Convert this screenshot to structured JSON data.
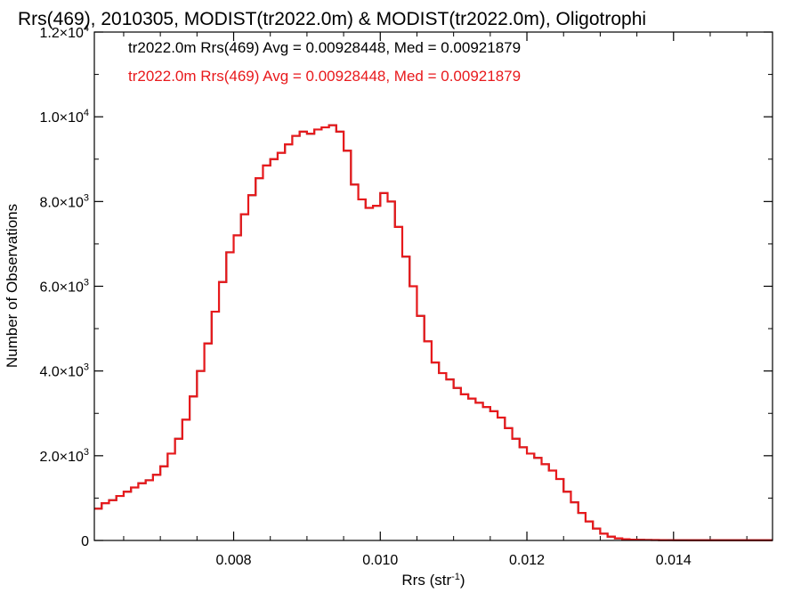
{
  "chart_data": {
    "type": "line",
    "step": true,
    "title": "Rrs(469), 2010305, MODIST(tr2022.0m) & MODIST(tr2022.0m), Oligotrophi",
    "xlabel": "Rrs (str",
    "xlabel_sup": "-1",
    "xlabel_end": ")",
    "ylabel": "Number of Observations",
    "xlim": [
      0.0061,
      0.01535
    ],
    "ylim": [
      0,
      12000
    ],
    "grid": false,
    "x_ticks": [
      {
        "value": 0.008,
        "label": "0.008"
      },
      {
        "value": 0.01,
        "label": "0.010"
      },
      {
        "value": 0.012,
        "label": "0.012"
      },
      {
        "value": 0.014,
        "label": "0.014"
      }
    ],
    "y_ticks": [
      {
        "value": 0,
        "mant": "0",
        "exp": ""
      },
      {
        "value": 2000,
        "mant": "2.0×10",
        "exp": "3"
      },
      {
        "value": 4000,
        "mant": "4.0×10",
        "exp": "3"
      },
      {
        "value": 6000,
        "mant": "6.0×10",
        "exp": "3"
      },
      {
        "value": 8000,
        "mant": "8.0×10",
        "exp": "3"
      },
      {
        "value": 10000,
        "mant": "1.0×10",
        "exp": "4"
      },
      {
        "value": 12000,
        "mant": "1.2×10",
        "exp": "4"
      }
    ],
    "annotations": [
      {
        "text": "tr2022.0m Rrs(469) Avg = 0.00928448, Med = 0.00921879",
        "color": "#000000"
      },
      {
        "text": "tr2022.0m Rrs(469) Avg = 0.00928448, Med = 0.00921879",
        "color": "#e8191c"
      }
    ],
    "series": [
      {
        "color": "#000000",
        "x": [
          0.0061,
          0.0062,
          0.0063,
          0.0064,
          0.0065,
          0.0066,
          0.0067,
          0.0068,
          0.0069,
          0.007,
          0.0071,
          0.0072,
          0.0073,
          0.0074,
          0.0075,
          0.0076,
          0.0077,
          0.0078,
          0.0079,
          0.008,
          0.0081,
          0.0082,
          0.0083,
          0.0084,
          0.0085,
          0.0086,
          0.0087,
          0.0088,
          0.0089,
          0.009,
          0.0091,
          0.0092,
          0.0093,
          0.0094,
          0.0095,
          0.0096,
          0.0097,
          0.0098,
          0.0099,
          0.01,
          0.0101,
          0.0102,
          0.0103,
          0.0104,
          0.0105,
          0.0106,
          0.0107,
          0.0108,
          0.0109,
          0.011,
          0.0111,
          0.0112,
          0.0113,
          0.0114,
          0.0115,
          0.0116,
          0.0117,
          0.0118,
          0.0119,
          0.012,
          0.0121,
          0.0122,
          0.0123,
          0.0124,
          0.0125,
          0.0126,
          0.0127,
          0.0128,
          0.0129,
          0.013,
          0.0131,
          0.0132,
          0.0133,
          0.0134,
          0.0135,
          0.0136,
          0.0137,
          0.0138,
          0.0139,
          0.014,
          0.0142,
          0.0144,
          0.0146,
          0.0148,
          0.015,
          0.0152,
          0.01535
        ],
        "y": [
          750,
          880,
          950,
          1050,
          1150,
          1250,
          1350,
          1420,
          1550,
          1750,
          2050,
          2400,
          2850,
          3400,
          4000,
          4650,
          5400,
          6100,
          6800,
          7200,
          7700,
          8150,
          8550,
          8850,
          9000,
          9150,
          9350,
          9550,
          9650,
          9600,
          9700,
          9750,
          9800,
          9650,
          9200,
          8400,
          8050,
          7850,
          7900,
          8200,
          8000,
          7400,
          6700,
          6000,
          5300,
          4700,
          4200,
          3950,
          3800,
          3600,
          3450,
          3350,
          3250,
          3150,
          3050,
          2900,
          2650,
          2400,
          2200,
          2050,
          1950,
          1800,
          1650,
          1450,
          1150,
          900,
          650,
          450,
          280,
          160,
          90,
          50,
          30,
          20,
          15,
          12,
          10,
          8,
          7,
          6,
          5,
          5,
          5,
          5,
          5,
          5,
          5
        ]
      },
      {
        "color": "#e8191c",
        "x": [
          0.0061,
          0.0062,
          0.0063,
          0.0064,
          0.0065,
          0.0066,
          0.0067,
          0.0068,
          0.0069,
          0.007,
          0.0071,
          0.0072,
          0.0073,
          0.0074,
          0.0075,
          0.0076,
          0.0077,
          0.0078,
          0.0079,
          0.008,
          0.0081,
          0.0082,
          0.0083,
          0.0084,
          0.0085,
          0.0086,
          0.0087,
          0.0088,
          0.0089,
          0.009,
          0.0091,
          0.0092,
          0.0093,
          0.0094,
          0.0095,
          0.0096,
          0.0097,
          0.0098,
          0.0099,
          0.01,
          0.0101,
          0.0102,
          0.0103,
          0.0104,
          0.0105,
          0.0106,
          0.0107,
          0.0108,
          0.0109,
          0.011,
          0.0111,
          0.0112,
          0.0113,
          0.0114,
          0.0115,
          0.0116,
          0.0117,
          0.0118,
          0.0119,
          0.012,
          0.0121,
          0.0122,
          0.0123,
          0.0124,
          0.0125,
          0.0126,
          0.0127,
          0.0128,
          0.0129,
          0.013,
          0.0131,
          0.0132,
          0.0133,
          0.0134,
          0.0135,
          0.0136,
          0.0137,
          0.0138,
          0.0139,
          0.014,
          0.0142,
          0.0144,
          0.0146,
          0.0148,
          0.015,
          0.0152,
          0.01535
        ],
        "y": [
          750,
          880,
          950,
          1050,
          1150,
          1250,
          1350,
          1420,
          1550,
          1750,
          2050,
          2400,
          2850,
          3400,
          4000,
          4650,
          5400,
          6100,
          6800,
          7200,
          7700,
          8150,
          8550,
          8850,
          9000,
          9150,
          9350,
          9550,
          9650,
          9600,
          9700,
          9750,
          9800,
          9650,
          9200,
          8400,
          8050,
          7850,
          7900,
          8200,
          8000,
          7400,
          6700,
          6000,
          5300,
          4700,
          4200,
          3950,
          3800,
          3600,
          3450,
          3350,
          3250,
          3150,
          3050,
          2900,
          2650,
          2400,
          2200,
          2050,
          1950,
          1800,
          1650,
          1450,
          1150,
          900,
          650,
          450,
          280,
          160,
          90,
          50,
          30,
          20,
          15,
          12,
          10,
          8,
          7,
          6,
          5,
          5,
          5,
          5,
          5,
          5,
          5
        ]
      }
    ]
  }
}
